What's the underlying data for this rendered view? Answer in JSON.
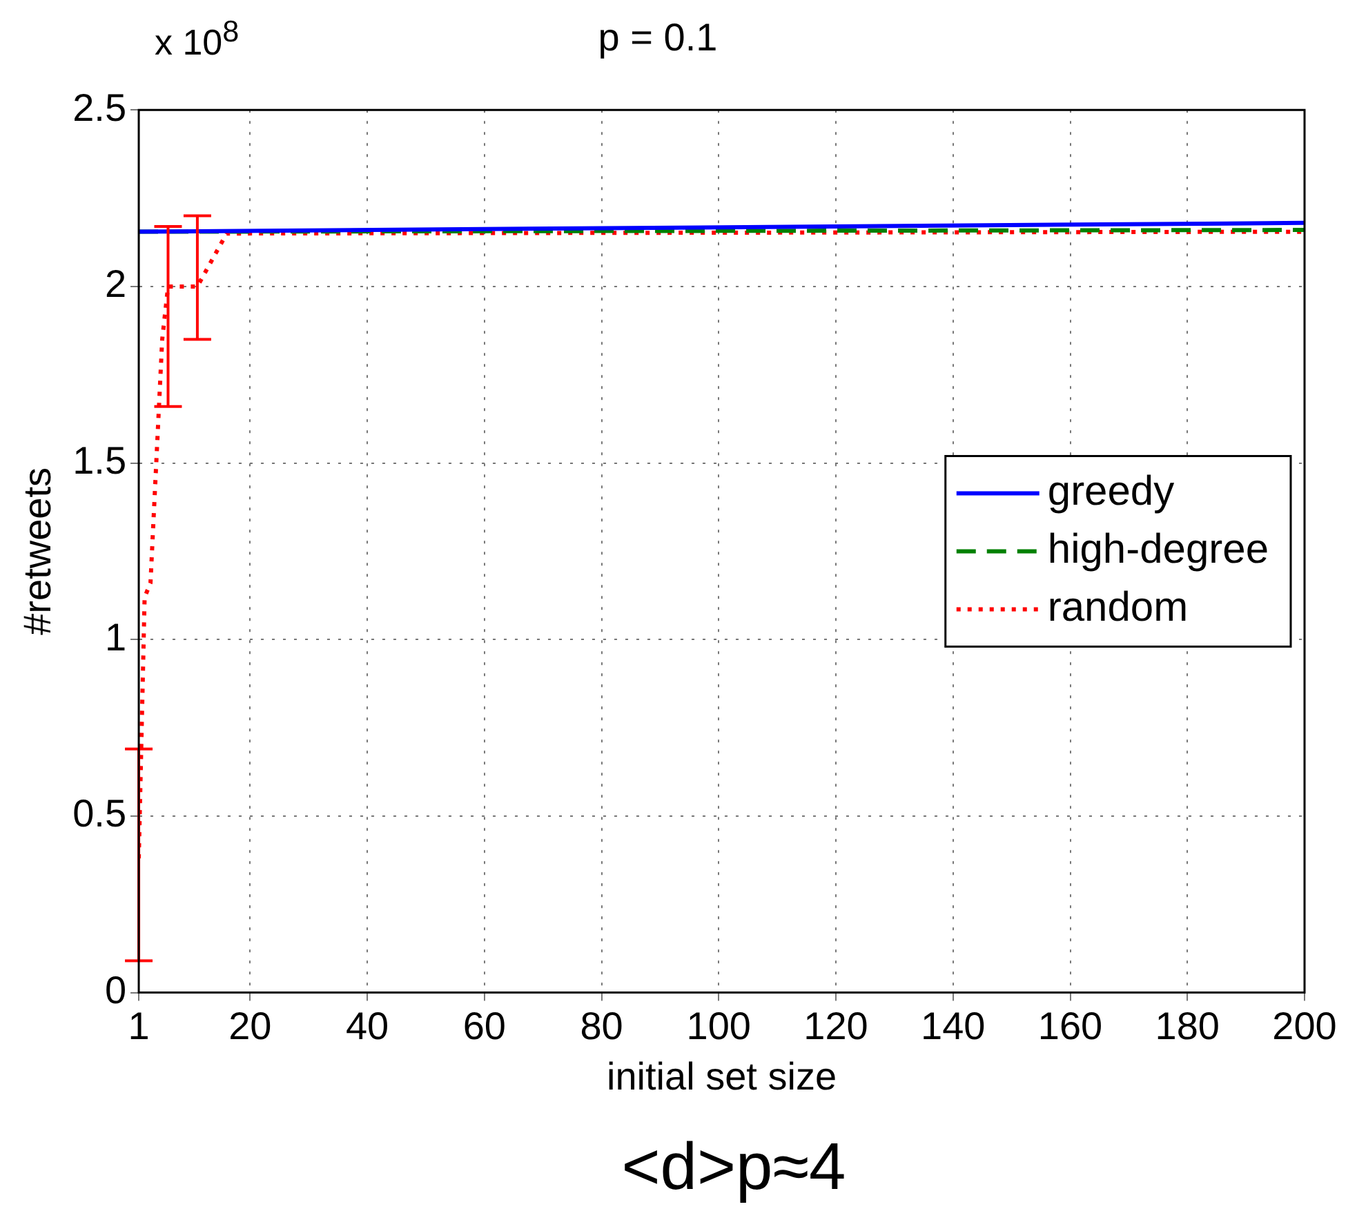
{
  "chart_data": {
    "type": "line",
    "title": "p = 0.1",
    "xlabel": "initial set size",
    "ylabel": "#retweets",
    "annotations": [
      "x 10$^{8}$",
      "<d>p≈4"
    ],
    "xlim": [
      1,
      200
    ],
    "xticks": [
      1,
      20,
      40,
      60,
      80,
      100,
      120,
      140,
      160,
      180,
      200
    ],
    "ylim": [
      0,
      2.5
    ],
    "yticks": [
      0,
      0.5,
      1,
      1.5,
      2,
      2.5
    ],
    "grid": true,
    "legend": "right",
    "marker": "none",
    "series": [
      {
        "name": "greedy",
        "color": "#0000ff",
        "line_style": "solid",
        "x": [
          1,
          200
        ],
        "values": [
          2.155,
          2.18
        ]
      },
      {
        "name": "high-degree",
        "color": "#008000",
        "line_style": "dashed",
        "x": [
          1,
          200
        ],
        "values": [
          2.155,
          2.16
        ]
      },
      {
        "name": "random",
        "color": "#ff0000",
        "line_style": "dotted",
        "x": [
          1,
          2,
          3,
          5,
          6,
          11,
          16,
          200
        ],
        "values": [
          0.38,
          1.12,
          1.16,
          1.85,
          2.0,
          2.0,
          2.15,
          2.155
        ],
        "errors": [
          [
            0.09,
            0.69
          ],
          null,
          null,
          null,
          [
            1.66,
            2.17
          ],
          [
            1.85,
            2.2
          ],
          null,
          null
        ]
      }
    ]
  }
}
